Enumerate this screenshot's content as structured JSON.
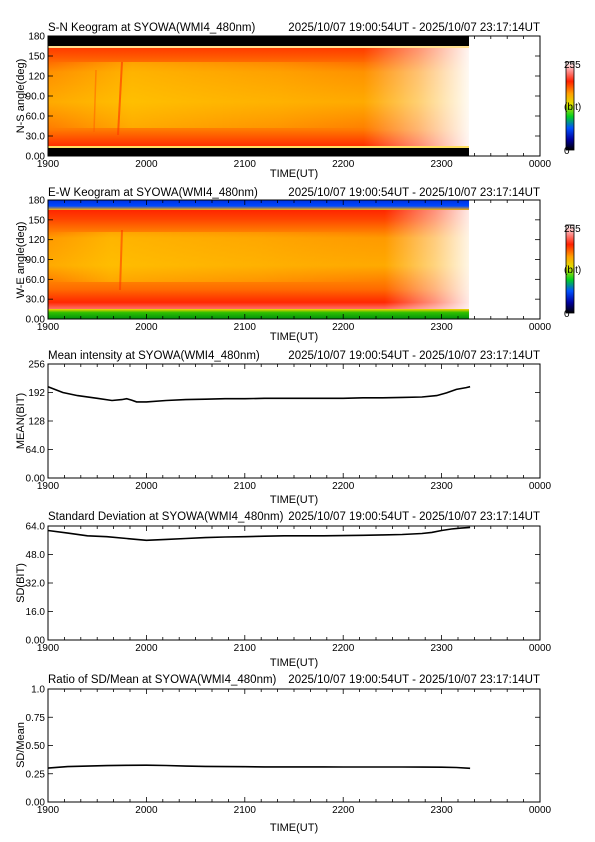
{
  "chart_data": [
    {
      "id": "sn",
      "type": "heatmap",
      "title": "S-N Keogram at SYOWA(WMI4_480nm)",
      "time_range": "2025/10/07 19:00:54UT - 2025/10/07 23:17:14UT",
      "xlabel": "TIME(UT)",
      "ylabel": "N-S angle(deg)",
      "x_ticks": [
        "1900",
        "2000",
        "2100",
        "2200",
        "2300",
        "0000"
      ],
      "y_ticks": [
        "0.00",
        "30.0",
        "60.0",
        "90.0",
        "120",
        "150",
        "180"
      ],
      "xlim_hours": [
        19,
        24
      ],
      "ylim": [
        0,
        180
      ],
      "data_end_hour": 23.2872,
      "colorbar": {
        "min_label": "0",
        "max_label": "255",
        "unit_label": "(bit)"
      }
    },
    {
      "id": "ew",
      "type": "heatmap",
      "title": "E-W Keogram at SYOWA(WMI4_480nm)",
      "time_range": "2025/10/07 19:00:54UT - 2025/10/07 23:17:14UT",
      "xlabel": "TIME(UT)",
      "ylabel": "W-E angle(deg)",
      "x_ticks": [
        "1900",
        "2000",
        "2100",
        "2200",
        "2300",
        "0000"
      ],
      "y_ticks": [
        "0.00",
        "30.0",
        "60.0",
        "90.0",
        "120",
        "150",
        "180"
      ],
      "xlim_hours": [
        19,
        24
      ],
      "ylim": [
        0,
        180
      ],
      "data_end_hour": 23.2872,
      "colorbar": {
        "min_label": "0",
        "max_label": "255",
        "unit_label": "(bit)"
      }
    },
    {
      "id": "mean",
      "type": "line",
      "title": "Mean intensity at SYOWA(WMI4_480nm)",
      "time_range": "2025/10/07 19:00:54UT - 2025/10/07 23:17:14UT",
      "xlabel": "TIME(UT)",
      "ylabel": "MEAN(BIT)",
      "x_ticks": [
        "1900",
        "2000",
        "2100",
        "2200",
        "2300",
        "0000"
      ],
      "y_ticks": [
        "0.00",
        "64.0",
        "128",
        "192",
        "256"
      ],
      "xlim_hours": [
        19,
        24
      ],
      "ylim": [
        0,
        256
      ],
      "series": [
        {
          "x": [
            19.0,
            19.15,
            19.3,
            19.5,
            19.65,
            19.75,
            19.8,
            19.85,
            19.9,
            20.0,
            20.2,
            20.4,
            20.6,
            20.8,
            21.0,
            21.2,
            21.4,
            21.6,
            21.8,
            22.0,
            22.2,
            22.4,
            22.6,
            22.8,
            22.95,
            23.05,
            23.15,
            23.25,
            23.29
          ],
          "y": [
            205,
            192,
            185,
            179,
            174,
            176,
            178,
            175,
            171,
            171,
            174,
            176,
            177,
            178,
            178,
            179,
            179,
            179,
            179,
            179,
            180,
            180,
            181,
            182,
            185,
            191,
            199,
            203,
            205
          ]
        }
      ]
    },
    {
      "id": "sd",
      "type": "line",
      "title": "Standard Deviation at SYOWA(WMI4_480nm)",
      "time_range": "2025/10/07 19:00:54UT - 2025/10/07 23:17:14UT",
      "xlabel": "TIME(UT)",
      "ylabel": "SD(BIT)",
      "x_ticks": [
        "1900",
        "2000",
        "2100",
        "2200",
        "2300",
        "0000"
      ],
      "y_ticks": [
        "0.00",
        "16.0",
        "32.0",
        "48.0",
        "64.0"
      ],
      "xlim_hours": [
        19,
        24
      ],
      "ylim": [
        0,
        64
      ],
      "series": [
        {
          "x": [
            19.0,
            19.2,
            19.4,
            19.6,
            19.8,
            19.9,
            20.0,
            20.2,
            20.4,
            20.6,
            20.8,
            21.0,
            21.2,
            21.4,
            21.6,
            21.8,
            22.0,
            22.2,
            22.4,
            22.6,
            22.8,
            22.9,
            23.0,
            23.1,
            23.2,
            23.29
          ],
          "y": [
            61.5,
            60.0,
            58.5,
            58.0,
            57.0,
            56.5,
            56.0,
            56.5,
            57.0,
            57.5,
            57.8,
            58.0,
            58.3,
            58.5,
            58.5,
            58.5,
            58.6,
            58.8,
            59.0,
            59.2,
            59.8,
            60.4,
            61.5,
            62.3,
            62.8,
            63.2
          ]
        }
      ]
    },
    {
      "id": "ratio",
      "type": "line",
      "title": "Ratio of SD/Mean at SYOWA(WMI4_480nm)",
      "time_range": "2025/10/07 19:00:54UT - 2025/10/07 23:17:14UT",
      "xlabel": "TIME(UT)",
      "ylabel": "SD/Mean",
      "x_ticks": [
        "1900",
        "2000",
        "2100",
        "2200",
        "2300",
        "0000"
      ],
      "y_ticks": [
        "0.00",
        "0.25",
        "0.50",
        "0.75",
        "1.0"
      ],
      "xlim_hours": [
        19,
        24
      ],
      "ylim": [
        0,
        1
      ],
      "series": [
        {
          "x": [
            19.0,
            19.2,
            19.4,
            19.6,
            19.8,
            20.0,
            20.2,
            20.4,
            20.6,
            20.8,
            21.0,
            21.2,
            21.4,
            21.6,
            21.8,
            22.0,
            22.2,
            22.4,
            22.6,
            22.8,
            23.0,
            23.15,
            23.29
          ],
          "y": [
            0.3,
            0.313,
            0.318,
            0.322,
            0.325,
            0.326,
            0.323,
            0.318,
            0.315,
            0.313,
            0.312,
            0.311,
            0.311,
            0.311,
            0.311,
            0.31,
            0.31,
            0.31,
            0.31,
            0.309,
            0.308,
            0.305,
            0.298
          ]
        }
      ]
    }
  ]
}
